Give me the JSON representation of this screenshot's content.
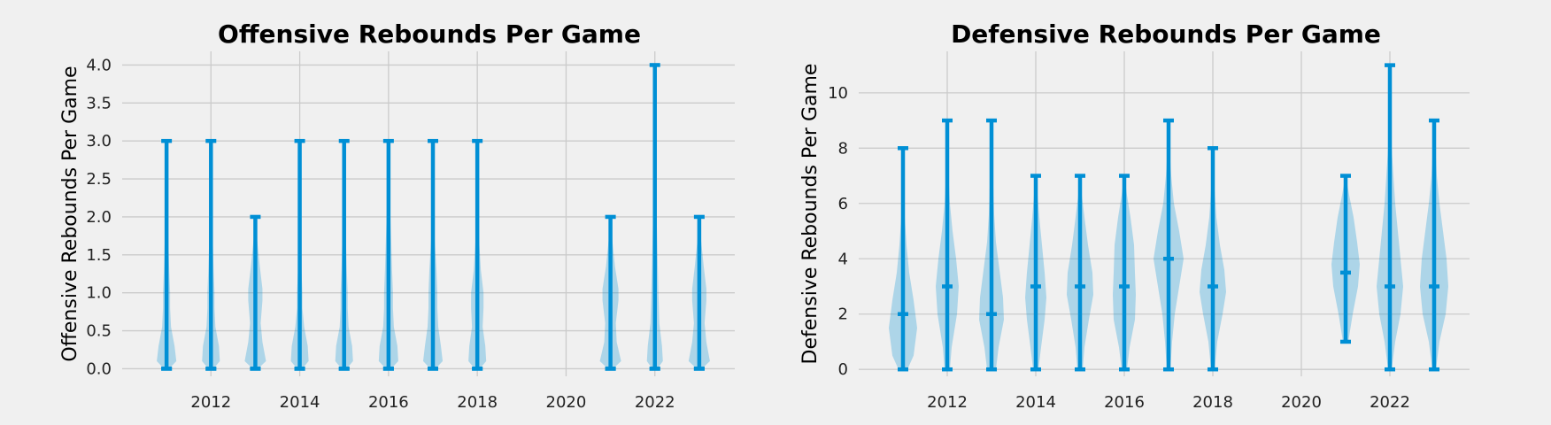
{
  "chart_data": [
    {
      "type": "violin",
      "title": "Offensive Rebounds Per Game",
      "xlabel": "",
      "ylabel": "Offensive Rebounds Per Game",
      "xlim": [
        2010.0,
        2023.8
      ],
      "ylim": [
        -0.1,
        4.18
      ],
      "xticks": [
        2012,
        2014,
        2016,
        2018,
        2020,
        2022
      ],
      "yticks": [
        "0.0",
        "0.5",
        "1.0",
        "1.5",
        "2.0",
        "2.5",
        "3.0",
        "3.5",
        "4.0"
      ],
      "grid": true,
      "color": "#008fd5",
      "violins": [
        {
          "x": 2011,
          "min": 0,
          "max": 3,
          "median": 0
        },
        {
          "x": 2012,
          "min": 0,
          "max": 3,
          "median": 0
        },
        {
          "x": 2013,
          "min": 0,
          "max": 2,
          "median": 0
        },
        {
          "x": 2014,
          "min": 0,
          "max": 3,
          "median": 0
        },
        {
          "x": 2015,
          "min": 0,
          "max": 3,
          "median": 0
        },
        {
          "x": 2016,
          "min": 0,
          "max": 3,
          "median": 0
        },
        {
          "x": 2017,
          "min": 0,
          "max": 3,
          "median": 0
        },
        {
          "x": 2018,
          "min": 0,
          "max": 3,
          "median": 0
        },
        {
          "x": 2021,
          "min": 0,
          "max": 2,
          "median": 0
        },
        {
          "x": 2022,
          "min": 0,
          "max": 4,
          "median": 0
        },
        {
          "x": 2023,
          "min": 0,
          "max": 2,
          "median": 0
        }
      ]
    },
    {
      "type": "violin",
      "title": "Defensive Rebounds Per Game",
      "xlabel": "",
      "ylabel": "Defensive Rebounds Per Game",
      "xlim": [
        2010.0,
        2023.8
      ],
      "ylim": [
        -0.25,
        11.5
      ],
      "xticks": [
        2012,
        2014,
        2016,
        2018,
        2020,
        2022
      ],
      "yticks": [
        "0",
        "2",
        "4",
        "6",
        "8",
        "10"
      ],
      "grid": true,
      "color": "#008fd5",
      "violins": [
        {
          "x": 2011,
          "min": 0,
          "max": 8,
          "median": 2
        },
        {
          "x": 2012,
          "min": 0,
          "max": 9,
          "median": 3
        },
        {
          "x": 2013,
          "min": 0,
          "max": 9,
          "median": 2
        },
        {
          "x": 2014,
          "min": 0,
          "max": 7,
          "median": 3
        },
        {
          "x": 2015,
          "min": 0,
          "max": 7,
          "median": 3
        },
        {
          "x": 2016,
          "min": 0,
          "max": 7,
          "median": 3
        },
        {
          "x": 2017,
          "min": 0,
          "max": 9,
          "median": 4
        },
        {
          "x": 2018,
          "min": 0,
          "max": 8,
          "median": 3
        },
        {
          "x": 2021,
          "min": 1,
          "max": 7,
          "median": 3.5
        },
        {
          "x": 2022,
          "min": 0,
          "max": 11,
          "median": 3
        },
        {
          "x": 2023,
          "min": 0,
          "max": 9,
          "median": 3
        }
      ]
    }
  ]
}
